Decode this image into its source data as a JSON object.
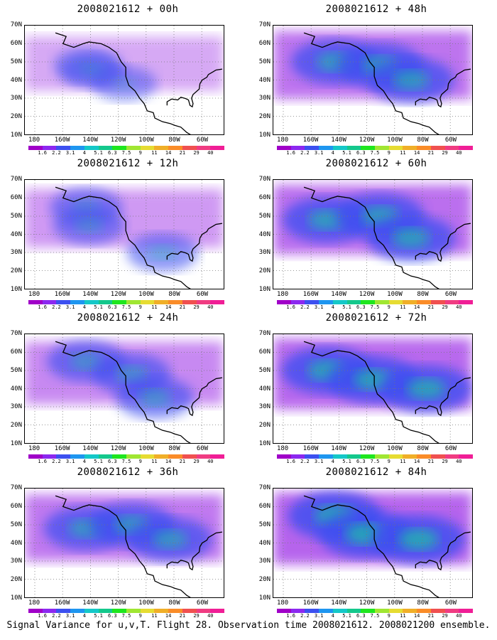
{
  "panels": [
    {
      "title": "2008021612 + 00h",
      "intensity": 0.2,
      "centers": [
        [
          -150,
          48
        ],
        [
          -145,
          45
        ],
        [
          -125,
          38
        ]
      ]
    },
    {
      "title": "2008021612 + 48h",
      "intensity": 0.7,
      "centers": [
        [
          -150,
          50
        ],
        [
          -120,
          48
        ],
        [
          -100,
          40
        ]
      ]
    },
    {
      "title": "2008021612 + 12h",
      "intensity": 0.35,
      "centers": [
        [
          -150,
          55
        ],
        [
          -148,
          45
        ],
        [
          -100,
          30
        ]
      ]
    },
    {
      "title": "2008021612 + 60h",
      "intensity": 0.75,
      "centers": [
        [
          -155,
          48
        ],
        [
          -120,
          50
        ],
        [
          -100,
          38
        ]
      ]
    },
    {
      "title": "2008021612 + 24h",
      "intensity": 0.5,
      "centers": [
        [
          -150,
          55
        ],
        [
          -120,
          48
        ],
        [
          -105,
          35
        ]
      ]
    },
    {
      "title": "2008021612 + 72h",
      "intensity": 0.8,
      "centers": [
        [
          -155,
          50
        ],
        [
          -125,
          45
        ],
        [
          -90,
          40
        ]
      ]
    },
    {
      "title": "2008021612 + 36h",
      "intensity": 0.65,
      "centers": [
        [
          -150,
          48
        ],
        [
          -120,
          50
        ],
        [
          -95,
          42
        ]
      ]
    },
    {
      "title": "2008021612 + 84h",
      "intensity": 0.85,
      "centers": [
        [
          -150,
          55
        ],
        [
          -130,
          45
        ],
        [
          -95,
          42
        ]
      ]
    }
  ],
  "lat_labels": [
    "70N",
    "60N",
    "50N",
    "40N",
    "30N",
    "20N",
    "10N"
  ],
  "lon_labels": [
    "180",
    "160W",
    "140W",
    "120W",
    "100W",
    "80W",
    "60W"
  ],
  "colorbar": {
    "colors": [
      "#a000c8",
      "#8c28f0",
      "#3c50f0",
      "#1e96f0",
      "#14c8c8",
      "#14c88c",
      "#1ee61e",
      "#a0e632",
      "#e6dc32",
      "#f0af28",
      "#fa8c28",
      "#f05050",
      "#f03c82",
      "#f01e96"
    ],
    "labels": [
      "1.6",
      "2.2",
      "3.1",
      "4",
      "5.1",
      "6.3",
      "7.5",
      "9",
      "11",
      "14",
      "21",
      "29",
      "40"
    ]
  },
  "footer": "Signal Variance for u,v,T. Flight 28. Observation time 2008021612. 2008021200 ensemble."
}
